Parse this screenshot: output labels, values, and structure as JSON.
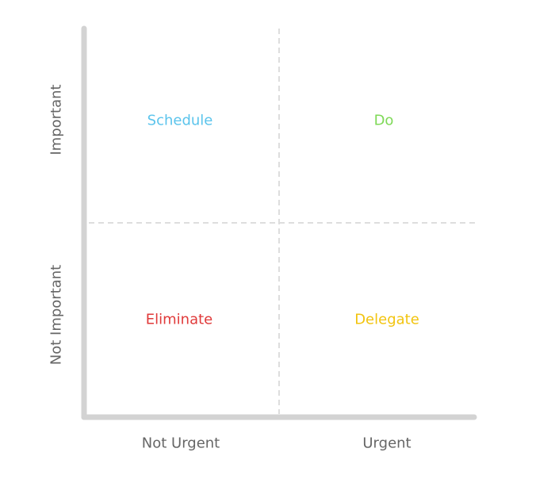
{
  "quadrants": {
    "top_left": {
      "label": "Schedule",
      "color": "#5bc4ec"
    },
    "top_right": {
      "label": "Do",
      "color": "#7ed957"
    },
    "bottom_left": {
      "label": "Eliminate",
      "color": "#e03a3a"
    },
    "bottom_right": {
      "label": "Delegate",
      "color": "#f2c40f"
    }
  },
  "x_axis": {
    "left_label": "Not Urgent",
    "right_label": "Urgent"
  },
  "y_axis": {
    "top_label": "Important",
    "bottom_label": "Not Important"
  },
  "colors": {
    "axis": "#d3d3d3",
    "divider": "#dddddd",
    "axis_text": "#666666"
  }
}
